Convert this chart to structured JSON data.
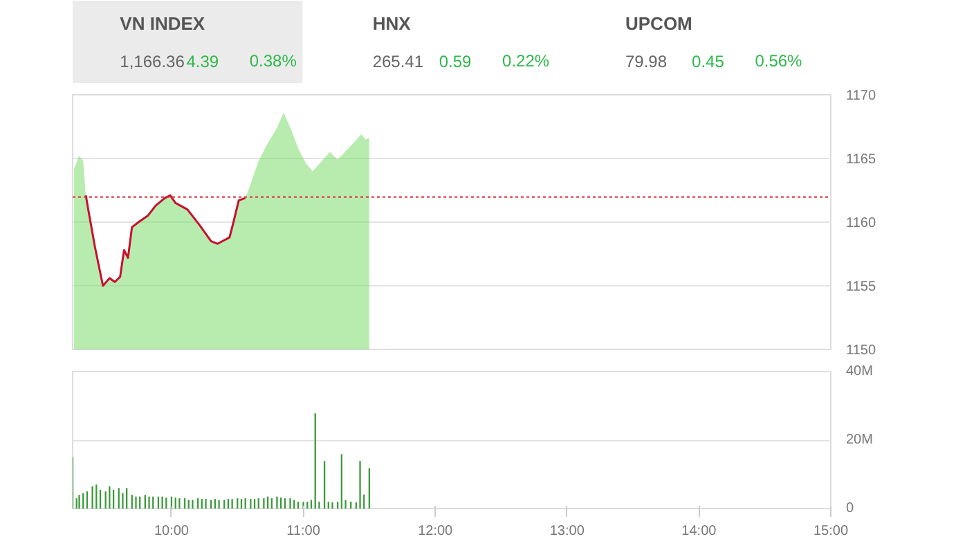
{
  "chart_data": [
    {
      "type": "other",
      "annotations": [
        "VN INDEX",
        "1,166.36",
        "4.39",
        "0.38%",
        "HNX",
        "265.41",
        "0.59",
        "0.22%",
        "UPCOM",
        "79.98",
        "0.45",
        "0.56%"
      ]
    },
    {
      "type": "area",
      "xlim": [
        9.25,
        15
      ],
      "ylim": [
        1150,
        1170
      ],
      "yticks": [
        1150,
        1155,
        1160,
        1165,
        1170
      ],
      "tick_labels": "y",
      "grid": "y",
      "ref_lines": [
        {
          "axis": "y",
          "value": 1161.97,
          "color": "#e03030",
          "line_style": "dotted"
        }
      ],
      "series": [
        {
          "type": "area",
          "color": "#7ddc6e",
          "x": [
            9.26,
            9.3,
            9.33,
            9.35,
            9.37,
            9.42,
            9.48,
            9.53,
            9.57,
            9.61,
            9.64,
            9.67,
            9.7,
            9.75,
            9.82,
            9.88,
            9.95,
            9.99,
            10.03,
            10.12,
            10.21,
            10.3,
            10.35,
            10.44,
            10.47,
            10.51,
            10.56,
            10.59,
            10.66,
            10.73,
            10.8,
            10.85,
            10.91,
            10.96,
            11.02,
            11.07,
            11.14,
            11.2,
            11.26,
            11.36,
            11.44,
            11.47,
            11.5
          ],
          "values": [
            1164.2,
            1165.2,
            1164.8,
            1162.1,
            1160.9,
            1158.0,
            1155.0,
            1155.6,
            1155.3,
            1155.7,
            1157.8,
            1157.2,
            1159.6,
            1160.0,
            1160.5,
            1161.3,
            1161.9,
            1162.1,
            1161.5,
            1161.0,
            1159.8,
            1158.5,
            1158.3,
            1158.8,
            1160.0,
            1161.7,
            1161.9,
            1162.7,
            1164.8,
            1166.2,
            1167.4,
            1168.6,
            1167.2,
            1165.8,
            1164.6,
            1164.0,
            1164.8,
            1165.5,
            1164.9,
            1166.0,
            1166.9,
            1166.5,
            1166.6
          ]
        },
        {
          "type": "line",
          "color": "#c8102e",
          "x": [
            9.35,
            9.37,
            9.42,
            9.48,
            9.53,
            9.57,
            9.61,
            9.64,
            9.67,
            9.7,
            9.75,
            9.82,
            9.88,
            9.95,
            9.99,
            10.03,
            10.12,
            10.21,
            10.3,
            10.35,
            10.44,
            10.47,
            10.51,
            10.56
          ],
          "values": [
            1162.1,
            1160.9,
            1158.0,
            1155.0,
            1155.6,
            1155.3,
            1155.7,
            1157.8,
            1157.2,
            1159.6,
            1160.0,
            1160.5,
            1161.3,
            1161.9,
            1162.1,
            1161.5,
            1161.0,
            1159.8,
            1158.5,
            1158.3,
            1158.8,
            1160.0,
            1161.7,
            1161.9
          ]
        }
      ]
    },
    {
      "type": "bar",
      "xlim": [
        9.25,
        15
      ],
      "ylim": [
        0,
        40
      ],
      "yticks": [
        0,
        {
          "value": 20,
          "label": "20M"
        },
        {
          "value": 40,
          "label": "40M"
        }
      ],
      "xticks": [
        {
          "value": 10,
          "label": "10:00"
        },
        {
          "value": 11,
          "label": "11:00"
        },
        {
          "value": 12,
          "label": "12:00"
        },
        {
          "value": 13,
          "label": "13:00"
        },
        {
          "value": 14,
          "label": "14:00"
        },
        {
          "value": 15,
          "label": "15:00"
        }
      ],
      "grid": "y",
      "series": [
        {
          "color": "#3a9a3a",
          "x": [
            9.25,
            9.28,
            9.3,
            9.33,
            9.36,
            9.4,
            9.43,
            9.46,
            9.5,
            9.53,
            9.56,
            9.6,
            9.63,
            9.66,
            9.7,
            9.73,
            9.76,
            9.8,
            9.83,
            9.86,
            9.9,
            9.93,
            9.96,
            10.0,
            10.03,
            10.06,
            10.1,
            10.13,
            10.16,
            10.2,
            10.23,
            10.26,
            10.3,
            10.33,
            10.36,
            10.4,
            10.43,
            10.46,
            10.5,
            10.53,
            10.56,
            10.6,
            10.63,
            10.66,
            10.7,
            10.73,
            10.76,
            10.8,
            10.83,
            10.86,
            10.9,
            10.93,
            10.96,
            11.0,
            11.03,
            11.06,
            11.09,
            11.12,
            11.16,
            11.19,
            11.22,
            11.26,
            11.29,
            11.32,
            11.36,
            11.4,
            11.43,
            11.46,
            11.5
          ],
          "values": [
            15,
            3,
            4,
            4.5,
            5,
            6.5,
            7,
            5.5,
            5,
            6.5,
            5.5,
            6,
            4.5,
            6,
            4,
            3.5,
            3.5,
            4,
            3.5,
            3.5,
            3.5,
            3.5,
            3.2,
            3.5,
            3.2,
            3,
            3,
            2.5,
            2.5,
            3,
            2.8,
            2.8,
            2.5,
            2.8,
            2.5,
            2.5,
            2.8,
            2.8,
            3,
            2.8,
            3,
            2.8,
            2.8,
            3,
            3,
            3.5,
            3,
            3.5,
            3.2,
            3,
            3,
            2.5,
            2,
            2,
            2,
            2.5,
            27.8,
            2,
            13.9,
            2,
            1.8,
            2,
            15.9,
            2.5,
            2,
            1.8,
            13.9,
            4.1,
            11.8
          ]
        }
      ]
    }
  ]
}
